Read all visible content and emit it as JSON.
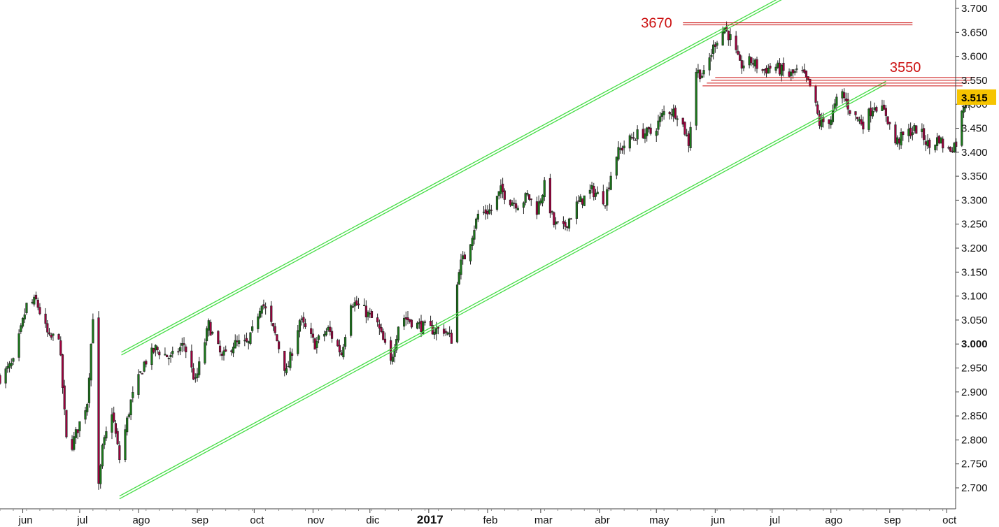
{
  "chart_data": {
    "type": "candlestick",
    "title": "",
    "xlabel": "",
    "ylabel": "",
    "ylim": [
      2680,
      3710
    ],
    "y_ticks": [
      "2.700",
      "2.750",
      "2.800",
      "2.850",
      "2.900",
      "2.950",
      "3.000",
      "3.050",
      "3.100",
      "3.150",
      "3.200",
      "3.250",
      "3.300",
      "3.350",
      "3.400",
      "3.450",
      "3.500",
      "3.550",
      "3.600",
      "3.650",
      "3.700"
    ],
    "y_tick_values": [
      2700,
      2750,
      2800,
      2850,
      2900,
      2950,
      3000,
      3050,
      3100,
      3150,
      3200,
      3250,
      3300,
      3350,
      3400,
      3450,
      3500,
      3550,
      3600,
      3650,
      3700
    ],
    "bold_tick": "3.000",
    "x_range": [
      "2016-05-20",
      "2017-10-05"
    ],
    "months": [
      {
        "label": "jun",
        "date": "2016-06-01"
      },
      {
        "label": "jul",
        "date": "2016-07-01"
      },
      {
        "label": "ago",
        "date": "2016-08-01"
      },
      {
        "label": "sep",
        "date": "2016-09-01"
      },
      {
        "label": "oct",
        "date": "2016-10-01"
      },
      {
        "label": "nov",
        "date": "2016-11-01"
      },
      {
        "label": "dic",
        "date": "2016-12-01"
      },
      {
        "label": "2017",
        "date": "2017-01-01",
        "bold": true
      },
      {
        "label": "feb",
        "date": "2017-02-01"
      },
      {
        "label": "mar",
        "date": "2017-03-01"
      },
      {
        "label": "abr",
        "date": "2017-04-01"
      },
      {
        "label": "may",
        "date": "2017-05-01"
      },
      {
        "label": "jun",
        "date": "2017-06-01"
      },
      {
        "label": "jul",
        "date": "2017-07-01"
      },
      {
        "label": "ago",
        "date": "2017-08-01"
      },
      {
        "label": "sep",
        "date": "2017-09-01"
      },
      {
        "label": "oct",
        "date": "2017-10-01"
      }
    ],
    "price_path": [
      [
        "2016-05-20",
        2930
      ],
      [
        "2016-05-27",
        2960
      ],
      [
        "2016-06-03",
        3080
      ],
      [
        "2016-06-08",
        3090
      ],
      [
        "2016-06-15",
        3010
      ],
      [
        "2016-06-20",
        3020
      ],
      [
        "2016-06-24",
        2800
      ],
      [
        "2016-06-27",
        2790
      ],
      [
        "2016-07-05",
        2880
      ],
      [
        "2016-07-08",
        3060
      ],
      [
        "2016-07-11",
        2700
      ],
      [
        "2016-07-13",
        2780
      ],
      [
        "2016-07-18",
        2860
      ],
      [
        "2016-07-22",
        2760
      ],
      [
        "2016-07-28",
        2880
      ],
      [
        "2016-08-04",
        2960
      ],
      [
        "2016-08-10",
        2990
      ],
      [
        "2016-08-18",
        2970
      ],
      [
        "2016-08-25",
        3000
      ],
      [
        "2016-08-31",
        2920
      ],
      [
        "2016-09-07",
        3040
      ],
      [
        "2016-09-14",
        2970
      ],
      [
        "2016-09-20",
        3000
      ],
      [
        "2016-09-28",
        3000
      ],
      [
        "2016-10-05",
        3090
      ],
      [
        "2016-10-12",
        3020
      ],
      [
        "2016-10-18",
        2940
      ],
      [
        "2016-10-25",
        3050
      ],
      [
        "2016-11-02",
        3000
      ],
      [
        "2016-11-09",
        3030
      ],
      [
        "2016-11-16",
        2980
      ],
      [
        "2016-11-21",
        3090
      ],
      [
        "2016-11-28",
        3070
      ],
      [
        "2016-12-05",
        3040
      ],
      [
        "2016-12-12",
        2960
      ],
      [
        "2016-12-17",
        3060
      ],
      [
        "2016-12-26",
        3040
      ],
      [
        "2017-01-02",
        3030
      ],
      [
        "2017-01-09",
        3030
      ],
      [
        "2017-01-13",
        3010
      ],
      [
        "2017-01-17",
        3160
      ],
      [
        "2017-01-21",
        3190
      ],
      [
        "2017-01-27",
        3270
      ],
      [
        "2017-02-03",
        3280
      ],
      [
        "2017-02-08",
        3320
      ],
      [
        "2017-02-13",
        3300
      ],
      [
        "2017-02-18",
        3290
      ],
      [
        "2017-02-22",
        3310
      ],
      [
        "2017-02-27",
        3280
      ],
      [
        "2017-03-03",
        3330
      ],
      [
        "2017-03-08",
        3250
      ],
      [
        "2017-03-13",
        3240
      ],
      [
        "2017-03-20",
        3290
      ],
      [
        "2017-03-28",
        3320
      ],
      [
        "2017-04-04",
        3300
      ],
      [
        "2017-04-09",
        3390
      ],
      [
        "2017-04-15",
        3420
      ],
      [
        "2017-04-22",
        3440
      ],
      [
        "2017-04-29",
        3440
      ],
      [
        "2017-05-06",
        3490
      ],
      [
        "2017-05-13",
        3480
      ],
      [
        "2017-05-18",
        3420
      ],
      [
        "2017-05-22",
        3570
      ],
      [
        "2017-05-26",
        3560
      ],
      [
        "2017-06-01",
        3630
      ],
      [
        "2017-06-06",
        3660
      ],
      [
        "2017-06-10",
        3630
      ],
      [
        "2017-06-14",
        3580
      ],
      [
        "2017-06-20",
        3590
      ],
      [
        "2017-06-26",
        3570
      ],
      [
        "2017-07-02",
        3580
      ],
      [
        "2017-07-10",
        3560
      ],
      [
        "2017-07-16",
        3570
      ],
      [
        "2017-07-22",
        3530
      ],
      [
        "2017-07-26",
        3460
      ],
      [
        "2017-08-01",
        3470
      ],
      [
        "2017-08-06",
        3530
      ],
      [
        "2017-08-12",
        3480
      ],
      [
        "2017-08-18",
        3460
      ],
      [
        "2017-08-24",
        3500
      ],
      [
        "2017-08-30",
        3480
      ],
      [
        "2017-09-04",
        3420
      ],
      [
        "2017-09-10",
        3440
      ],
      [
        "2017-09-16",
        3450
      ],
      [
        "2017-09-22",
        3410
      ],
      [
        "2017-09-27",
        3430
      ],
      [
        "2017-10-01",
        3400
      ],
      [
        "2017-10-06",
        3420
      ],
      [
        "2017-10-10",
        3500
      ],
      [
        "2017-10-14",
        3520
      ]
    ],
    "annotations": [
      {
        "label": "3670",
        "value": 3670,
        "from": "2017-05-15",
        "to": "2017-09-13"
      },
      {
        "label": "3550",
        "value": 3550,
        "from": "2017-06-01",
        "to": "2017-10-16"
      }
    ],
    "channel": {
      "upper": {
        "start": [
          "2016-07-23",
          2980
        ],
        "end": [
          "2017-06-12",
          3670
        ]
      },
      "lower": {
        "start": [
          "2016-07-22",
          2680
        ],
        "end": [
          "2017-08-30",
          3545
        ]
      }
    },
    "last_price": "3.515",
    "last_value": 3515,
    "colors": {
      "up": "#1a7a1a",
      "down": "#a1003f",
      "channel": "#44dd44",
      "level": "#cc1111",
      "price_tag": "#f6c400"
    },
    "grid": false
  }
}
